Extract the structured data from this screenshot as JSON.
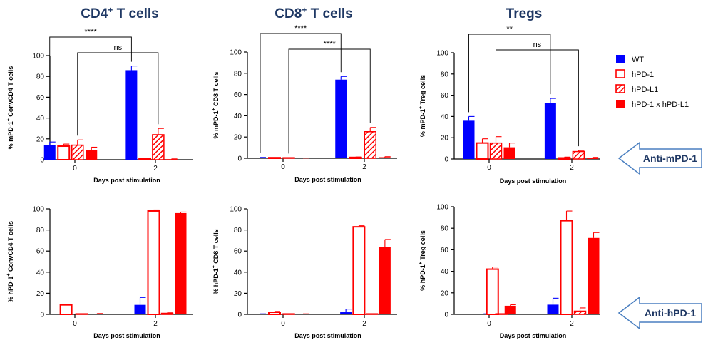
{
  "column_titles": {
    "cd4": {
      "main": "CD4",
      "sup": "+",
      "rest": " T cells"
    },
    "cd8": {
      "main": "CD8",
      "sup": "+",
      "rest": " T cells"
    },
    "treg": {
      "main": "Tregs",
      "sup": "",
      "rest": ""
    }
  },
  "legend": [
    {
      "label": "WT",
      "color": "#0000ff",
      "style": "solid"
    },
    {
      "label": "hPD-1",
      "color": "#ff0000",
      "style": "open"
    },
    {
      "label": "hPD-L1",
      "color": "#ff0000",
      "style": "hatched"
    },
    {
      "label": "hPD-1 x hPD-L1",
      "color": "#ff0000",
      "style": "solid"
    }
  ],
  "callouts": [
    {
      "label": "Anti-mPD-1",
      "border_color": "#4a7fc0",
      "text_color": "#1f3864"
    },
    {
      "label": "Anti-hPD-1",
      "border_color": "#4a7fc0",
      "text_color": "#1f3864"
    }
  ],
  "chart_data": [
    {
      "type": "bar",
      "panel": "top-cd4",
      "xlabel": "Days post stimulation",
      "ylabel": {
        "pre": "% mPD-1",
        "sup": "+",
        "post": " ConvCD4 T cells"
      },
      "ylim": [
        0,
        100
      ],
      "yticks": [
        0,
        20,
        40,
        60,
        80,
        100
      ],
      "categories": [
        "0",
        "2"
      ],
      "series": [
        {
          "name": "WT",
          "values": [
            14,
            86
          ],
          "errors": [
            3,
            4
          ]
        },
        {
          "name": "hPD-1",
          "values": [
            13,
            1
          ],
          "errors": [
            2,
            0.6
          ]
        },
        {
          "name": "hPD-L1",
          "values": [
            14,
            24
          ],
          "errors": [
            5,
            6
          ]
        },
        {
          "name": "hPD-1 x hPD-L1",
          "values": [
            9,
            0.5
          ],
          "errors": [
            3,
            0.3
          ]
        }
      ],
      "significance": [
        {
          "label": "****",
          "from": [
            0,
            "WT"
          ],
          "to": [
            1,
            "WT"
          ]
        },
        {
          "label": "ns",
          "from": [
            0,
            "hPD-L1"
          ],
          "to": [
            1,
            "hPD-L1"
          ]
        }
      ]
    },
    {
      "type": "bar",
      "panel": "top-cd8",
      "xlabel": "Days post stimulation",
      "ylabel": {
        "pre": "% mPD-1",
        "sup": "+",
        "post": " CD8 T cells"
      },
      "ylim": [
        0,
        100
      ],
      "yticks": [
        0,
        20,
        40,
        60,
        80,
        100
      ],
      "categories": [
        "0",
        "2"
      ],
      "series": [
        {
          "name": "WT",
          "values": [
            0.5,
            74
          ],
          "errors": [
            0.3,
            3
          ]
        },
        {
          "name": "hPD-1",
          "values": [
            0.3,
            0.8
          ],
          "errors": [
            0.2,
            0.4
          ]
        },
        {
          "name": "hPD-L1",
          "values": [
            0.2,
            25
          ],
          "errors": [
            0.2,
            4
          ]
        },
        {
          "name": "hPD-1 x hPD-L1",
          "values": [
            0.1,
            1
          ],
          "errors": [
            0.1,
            0.5
          ]
        }
      ],
      "significance": [
        {
          "label": "****",
          "from": [
            0,
            "WT"
          ],
          "to": [
            1,
            "WT"
          ]
        },
        {
          "label": "****",
          "from": [
            0,
            "hPD-L1"
          ],
          "to": [
            1,
            "hPD-L1"
          ]
        }
      ]
    },
    {
      "type": "bar",
      "panel": "top-treg",
      "xlabel": "Days post stimulation",
      "ylabel": {
        "pre": "% mPD-1",
        "sup": "+",
        "post": " Treg cells"
      },
      "ylim": [
        0,
        100
      ],
      "yticks": [
        0,
        20,
        40,
        60,
        80,
        100
      ],
      "categories": [
        "0",
        "2"
      ],
      "series": [
        {
          "name": "WT",
          "values": [
            36,
            53
          ],
          "errors": [
            4,
            4
          ]
        },
        {
          "name": "hPD-1",
          "values": [
            15,
            1
          ],
          "errors": [
            4,
            0.8
          ]
        },
        {
          "name": "hPD-L1",
          "values": [
            15,
            7
          ],
          "errors": [
            6,
            1
          ]
        },
        {
          "name": "hPD-1 x hPD-L1",
          "values": [
            11,
            1
          ],
          "errors": [
            4,
            0.5
          ]
        }
      ],
      "significance": [
        {
          "label": "**",
          "from": [
            0,
            "WT"
          ],
          "to": [
            1,
            "WT"
          ]
        },
        {
          "label": "ns",
          "from": [
            0,
            "hPD-L1"
          ],
          "to": [
            1,
            "hPD-L1"
          ]
        }
      ]
    },
    {
      "type": "bar",
      "panel": "bottom-cd4",
      "xlabel": "Days post stimulation",
      "ylabel": {
        "pre": "% hPD-1",
        "sup": "+",
        "post": " ConvCD4 T cells"
      },
      "ylim": [
        0,
        100
      ],
      "yticks": [
        0,
        20,
        40,
        60,
        80,
        100
      ],
      "categories": [
        "0",
        "2"
      ],
      "series": [
        {
          "name": "WT",
          "values": [
            0,
            9
          ],
          "errors": [
            0,
            7
          ]
        },
        {
          "name": "hPD-1",
          "values": [
            9,
            98
          ],
          "errors": [
            0.5,
            1
          ]
        },
        {
          "name": "hPD-L1",
          "values": [
            0,
            1
          ],
          "errors": [
            0,
            0.5
          ]
        },
        {
          "name": "hPD-1 x hPD-L1",
          "values": [
            0.5,
            96
          ],
          "errors": [
            0.3,
            1
          ]
        }
      ]
    },
    {
      "type": "bar",
      "panel": "bottom-cd8",
      "xlabel": "Days post stimulation",
      "ylabel": {
        "pre": "% hPD-1",
        "sup": "+",
        "post": " CD8 T cells"
      },
      "ylim": [
        0,
        100
      ],
      "yticks": [
        0,
        20,
        40,
        60,
        80,
        100
      ],
      "categories": [
        "0",
        "2"
      ],
      "series": [
        {
          "name": "WT",
          "values": [
            0.3,
            2
          ],
          "errors": [
            0.2,
            3
          ]
        },
        {
          "name": "hPD-1",
          "values": [
            2,
            83
          ],
          "errors": [
            0.8,
            1
          ]
        },
        {
          "name": "hPD-L1",
          "values": [
            0,
            0.4
          ],
          "errors": [
            0,
            0.2
          ]
        },
        {
          "name": "hPD-1 x hPD-L1",
          "values": [
            0.3,
            64
          ],
          "errors": [
            0.2,
            7
          ]
        }
      ]
    },
    {
      "type": "bar",
      "panel": "bottom-treg",
      "xlabel": "Days post stimulation",
      "ylabel": {
        "pre": "% hPD-1",
        "sup": "+",
        "post": " Treg cells"
      },
      "ylim": [
        0,
        100
      ],
      "yticks": [
        0,
        20,
        40,
        60,
        80,
        100
      ],
      "categories": [
        "0",
        "2"
      ],
      "series": [
        {
          "name": "WT",
          "values": [
            0.3,
            9
          ],
          "errors": [
            0.2,
            6
          ]
        },
        {
          "name": "hPD-1",
          "values": [
            42,
            87
          ],
          "errors": [
            2,
            9
          ]
        },
        {
          "name": "hPD-L1",
          "values": [
            0,
            3
          ],
          "errors": [
            0,
            3
          ]
        },
        {
          "name": "hPD-1 x hPD-L1",
          "values": [
            8,
            71
          ],
          "errors": [
            1,
            5
          ]
        }
      ]
    }
  ]
}
